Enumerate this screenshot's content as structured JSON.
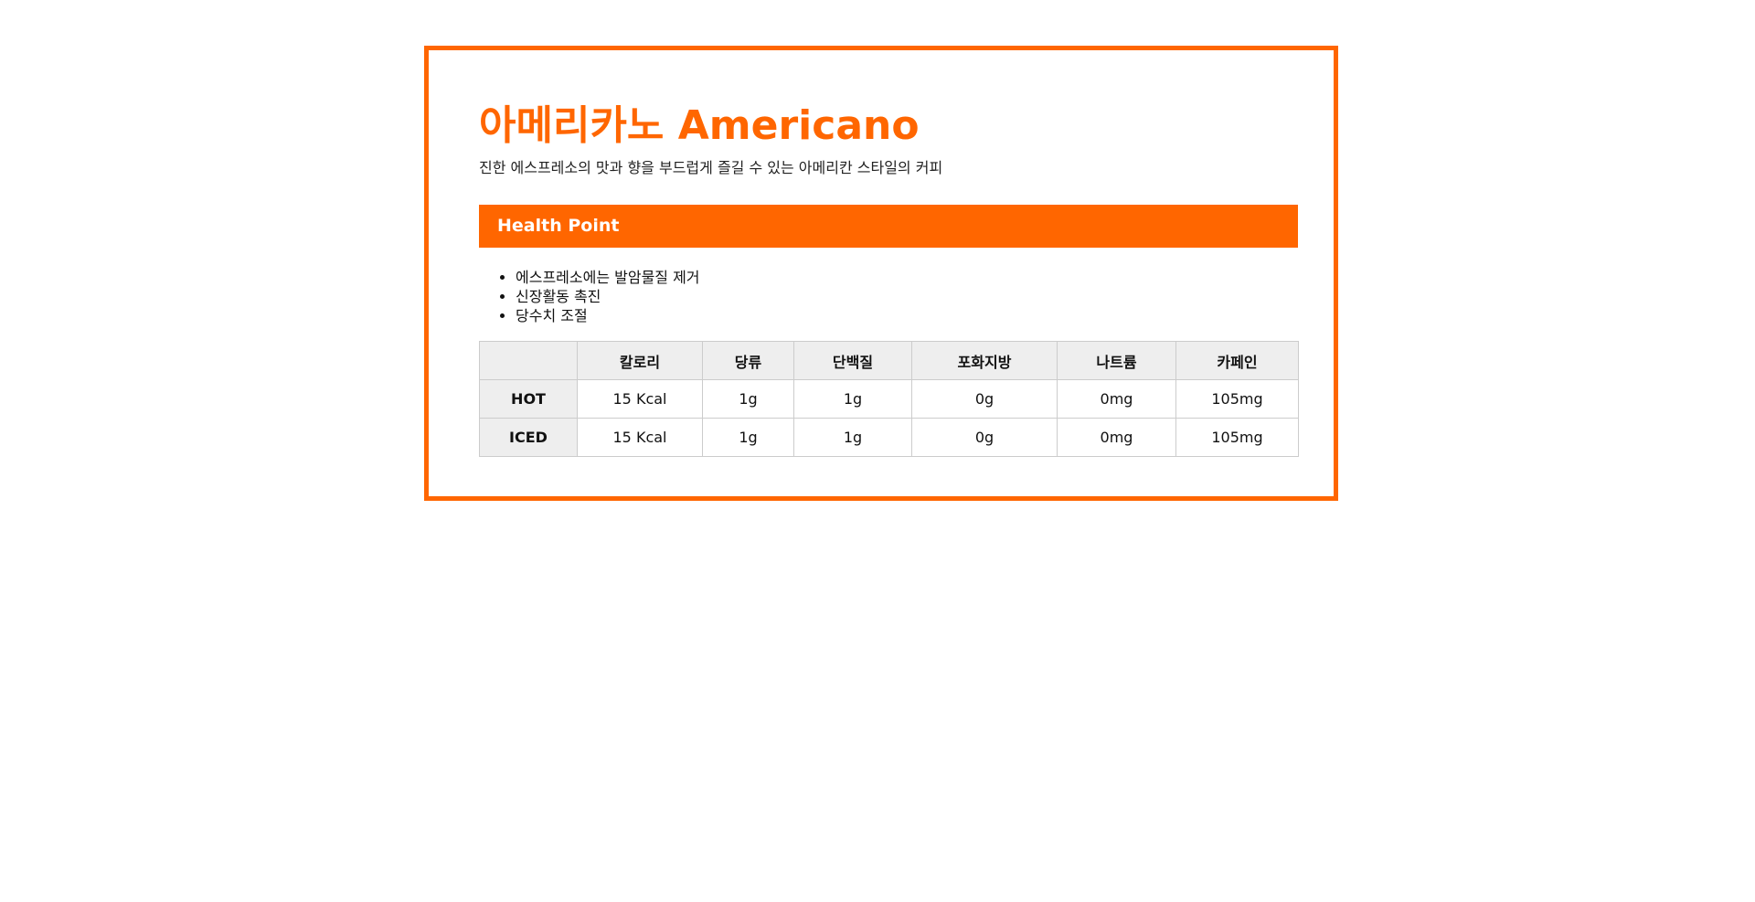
{
  "product": {
    "title": "아메리카노 Americano",
    "description": "진한 에스프레소의 맛과 향을 부드럽게 즐길 수 있는 아메리칸 스타일의 커피"
  },
  "health": {
    "heading": "Health Point",
    "points": [
      "에스프레소에는 발암물질 제거",
      "신장활동 촉진",
      "당수치 조절"
    ]
  },
  "nutrition": {
    "headers": [
      "",
      "칼로리",
      "당류",
      "단백질",
      "포화지방",
      "나트륨",
      "카페인"
    ],
    "rows": [
      {
        "label": "HOT",
        "values": [
          "15 Kcal",
          "1g",
          "1g",
          "0g",
          "0mg",
          "105mg"
        ]
      },
      {
        "label": "ICED",
        "values": [
          "15 Kcal",
          "1g",
          "1g",
          "0g",
          "0mg",
          "105mg"
        ]
      }
    ]
  },
  "colors": {
    "accent": "#ff6600",
    "header_bg": "#eeeeee",
    "border": "#cccccc"
  }
}
